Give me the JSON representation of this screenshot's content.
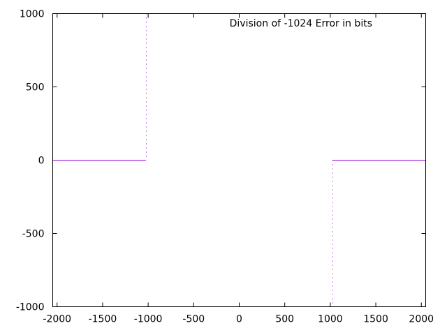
{
  "chart_data": {
    "type": "line",
    "title": "Division of -1024 Error in bits",
    "xlabel": "",
    "ylabel": "",
    "xlim": [
      -2048,
      2048
    ],
    "ylim": [
      -1000,
      1000
    ],
    "grid": false,
    "x_ticks": [
      -2000,
      -1500,
      -1000,
      -500,
      0,
      500,
      1000,
      1500,
      2000
    ],
    "x_tick_labels": [
      "-2000",
      "-1500",
      "-1000",
      "-500",
      "0",
      "500",
      "1000",
      "1500",
      "2000"
    ],
    "y_ticks": [
      -1000,
      -500,
      0,
      500,
      1000
    ],
    "y_tick_labels": [
      "-1000",
      "-500",
      "0",
      "500",
      "1000"
    ],
    "series": [
      {
        "color": "#9400d3",
        "style": "points",
        "segments": [
          {
            "x": [
              -2048,
              -1025
            ],
            "y": [
              0,
              0
            ]
          },
          {
            "x": [
              1025,
              2048
            ],
            "y": [
              0,
              0
            ]
          }
        ],
        "dotted_columns": [
          {
            "x": -1024,
            "y_from": 0,
            "y_to": 1000
          },
          {
            "x": 1024,
            "y_from": -1000,
            "y_to": 0
          }
        ]
      }
    ]
  }
}
